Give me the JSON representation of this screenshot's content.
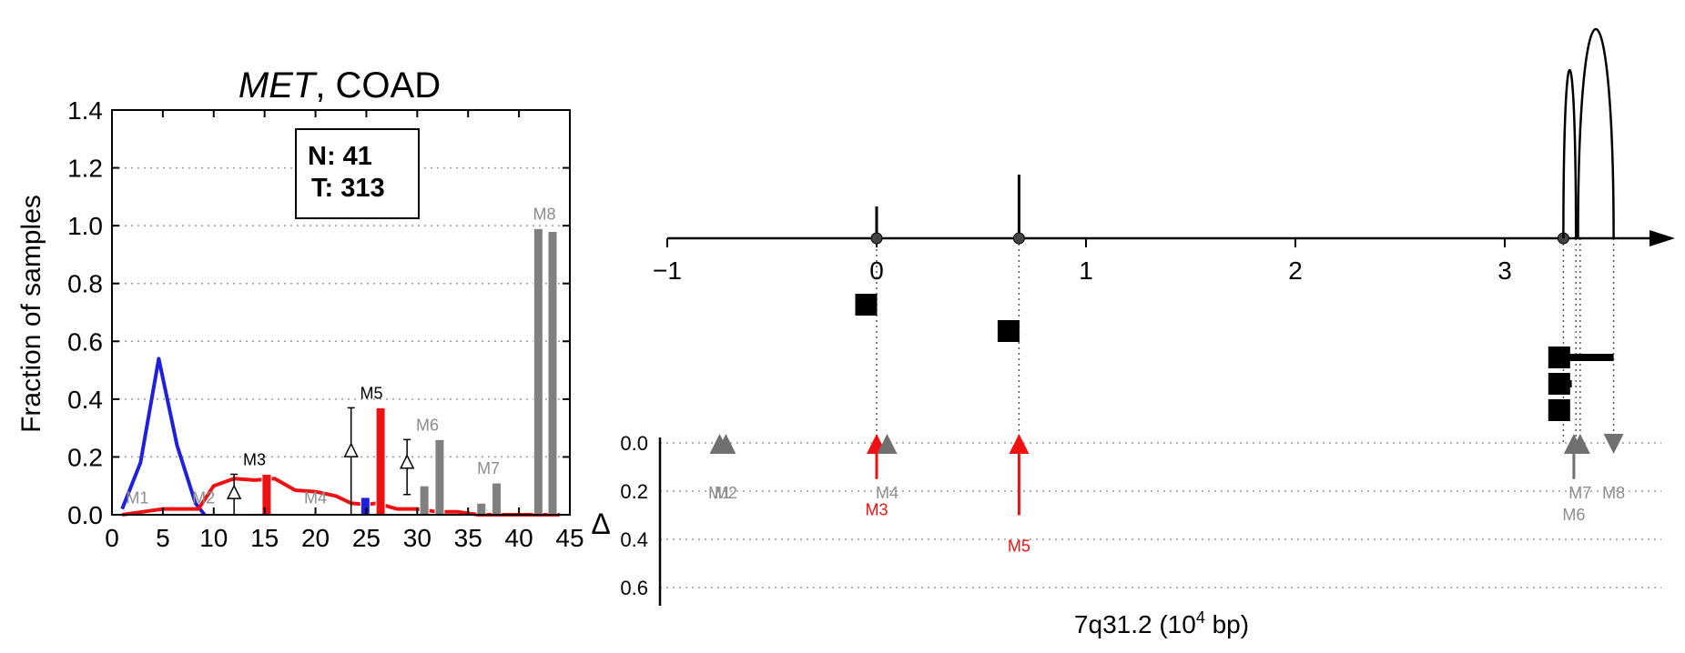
{
  "colors": {
    "normal": "#1f1fdd",
    "tumor": "#ee1111",
    "grey_bar": "#808080",
    "grey_label": "#8c8c8c",
    "black": "#000000",
    "grid": "#999999"
  },
  "left": {
    "title_gene": "MET",
    "title_rest": ", COAD",
    "ylabel": "Fraction of samples",
    "legend_n": "N: 41",
    "legend_t": "T: 313"
  },
  "right": {
    "xlabel_main": "7q31.2 (10",
    "xlabel_sup": "4",
    "xlabel_tail": " bp)",
    "delta_label": "Δ"
  },
  "chart_data": [
    {
      "type": "bar",
      "title": "MET, COAD",
      "xlabel": "",
      "ylabel": "Fraction of samples",
      "xlim": [
        0,
        45
      ],
      "ylim": [
        0,
        1.4
      ],
      "xticks": [
        0,
        5,
        10,
        15,
        20,
        25,
        30,
        35,
        40,
        45
      ],
      "yticks": [
        0.0,
        0.2,
        0.4,
        0.6,
        0.8,
        1.0,
        1.2,
        1.4
      ],
      "grid": "horizontal dotted",
      "legend_text": [
        "N: 41",
        "T: 313"
      ],
      "lines": [
        {
          "color": "blue",
          "x": [
            1,
            2.8,
            4.6,
            6.4,
            8.2,
            9.1
          ],
          "y": [
            0.02,
            0.18,
            0.54,
            0.24,
            0.04,
            0.0
          ]
        },
        {
          "color": "red",
          "x": [
            1,
            3,
            5,
            7,
            8.5,
            10,
            12,
            14,
            16,
            18,
            20,
            22,
            23.5,
            25,
            26,
            28,
            30,
            32,
            34,
            36,
            38,
            40,
            42,
            44
          ],
          "y": [
            0.0,
            0.01,
            0.02,
            0.02,
            0.02,
            0.1,
            0.125,
            0.12,
            0.125,
            0.085,
            0.08,
            0.065,
            0.04,
            0.035,
            0.04,
            0.02,
            0.02,
            0.01,
            0.01,
            0.0,
            0.0,
            0.0,
            0.0,
            0.0
          ]
        }
      ],
      "motifs": [
        {
          "label": "M1",
          "x": 2.5,
          "color": "grey",
          "bars": []
        },
        {
          "label": "M2",
          "x": 9.0,
          "color": "grey",
          "bars": []
        },
        {
          "label": "M3",
          "x": 14.0,
          "color": "black",
          "bars": [
            {
              "x": 14.3,
              "y": 0.005,
              "color": "blue"
            },
            {
              "x": 15.2,
              "y": 0.14,
              "color": "red"
            }
          ],
          "delta_y": 0.075,
          "err": [
            0.0,
            0.14
          ]
        },
        {
          "label": "M4",
          "x": 20.0,
          "color": "grey",
          "bars": []
        },
        {
          "label": "M5",
          "x": 25.5,
          "color": "black",
          "bars": [
            {
              "x": 24.9,
              "y": 0.06,
              "color": "blue"
            },
            {
              "x": 26.4,
              "y": 0.37,
              "color": "red"
            }
          ],
          "delta_y": 0.22,
          "err": [
            0.0,
            0.37
          ]
        },
        {
          "label": "M6",
          "x": 31.0,
          "color": "grey",
          "bars": [
            {
              "x": 30.7,
              "y": 0.1,
              "color": "grey"
            },
            {
              "x": 32.2,
              "y": 0.26,
              "color": "grey"
            }
          ],
          "delta_y": 0.18,
          "err": [
            0.07,
            0.26
          ]
        },
        {
          "label": "M7",
          "x": 37.0,
          "color": "grey",
          "bars": [
            {
              "x": 36.3,
              "y": 0.04,
              "color": "grey"
            },
            {
              "x": 37.8,
              "y": 0.11,
              "color": "grey"
            }
          ]
        },
        {
          "label": "M8",
          "x": 42.5,
          "color": "grey",
          "bars": [
            {
              "x": 41.9,
              "y": 0.99,
              "color": "grey"
            },
            {
              "x": 43.3,
              "y": 0.98,
              "color": "grey"
            }
          ]
        }
      ]
    },
    {
      "type": "scatter",
      "title": "",
      "xlabel": "7q31.2 (10^4 bp)",
      "ylabel": "Δ",
      "xlim": [
        -1,
        3.8
      ],
      "xticks": [
        -1,
        0,
        1,
        2,
        3
      ],
      "xticklabels": [
        "−1",
        "0",
        "1",
        "2",
        "3"
      ],
      "delta_ticks": [
        0.0,
        0.2,
        0.4,
        0.6
      ],
      "delta_ticklabels": [
        "0.0",
        "0.2",
        "0.4",
        "0.6"
      ],
      "grid": "horizontal dotted (Δ panel)",
      "exon_marks": [
        {
          "x": 0.0,
          "height": 0.35
        },
        {
          "x": 0.68,
          "height": 0.7
        }
      ],
      "junction_arcs": [
        {
          "start": 3.28,
          "end": 3.34,
          "height": 1.85
        },
        {
          "start": 3.35,
          "end": 3.52,
          "height": 2.3
        }
      ],
      "guide_lines": [
        0.0,
        0.68,
        3.28,
        3.34,
        3.36,
        3.52
      ],
      "exon_blocks": [
        {
          "x": -0.05,
          "row": 0,
          "bar_end": -0.05
        },
        {
          "x": 0.63,
          "row": 1,
          "bar_end": 0.63
        },
        {
          "x": 3.26,
          "row": 2,
          "bar_end": 3.52
        },
        {
          "x": 3.26,
          "row": 3,
          "bar_end": 3.32
        },
        {
          "x": 3.26,
          "row": 4,
          "bar_end": 3.3
        }
      ],
      "motifs": [
        {
          "label": "M1",
          "x": -0.75,
          "delta": 0.0,
          "dir": "up",
          "color": "grey",
          "label_dy": 0.2
        },
        {
          "label": "M2",
          "x": -0.72,
          "delta": 0.0,
          "dir": "up",
          "color": "grey",
          "label_dy": 0.2
        },
        {
          "label": "M3",
          "x": 0.0,
          "delta": 0.15,
          "dir": "up",
          "color": "red",
          "label_dy": 0.27
        },
        {
          "label": "M4",
          "x": 0.05,
          "delta": 0.0,
          "dir": "up",
          "color": "grey",
          "label_dy": 0.2
        },
        {
          "label": "M5",
          "x": 0.68,
          "delta": 0.3,
          "dir": "up",
          "color": "red",
          "label_dy": 0.42
        },
        {
          "label": "M6",
          "x": 3.33,
          "delta": 0.15,
          "dir": "up",
          "color": "grey",
          "label_dy": 0.29
        },
        {
          "label": "M7",
          "x": 3.36,
          "delta": 0.0,
          "dir": "up",
          "color": "grey",
          "label_dy": 0.2
        },
        {
          "label": "M8",
          "x": 3.52,
          "delta": 0.0,
          "dir": "down",
          "color": "grey",
          "label_dy": 0.2
        }
      ]
    }
  ]
}
